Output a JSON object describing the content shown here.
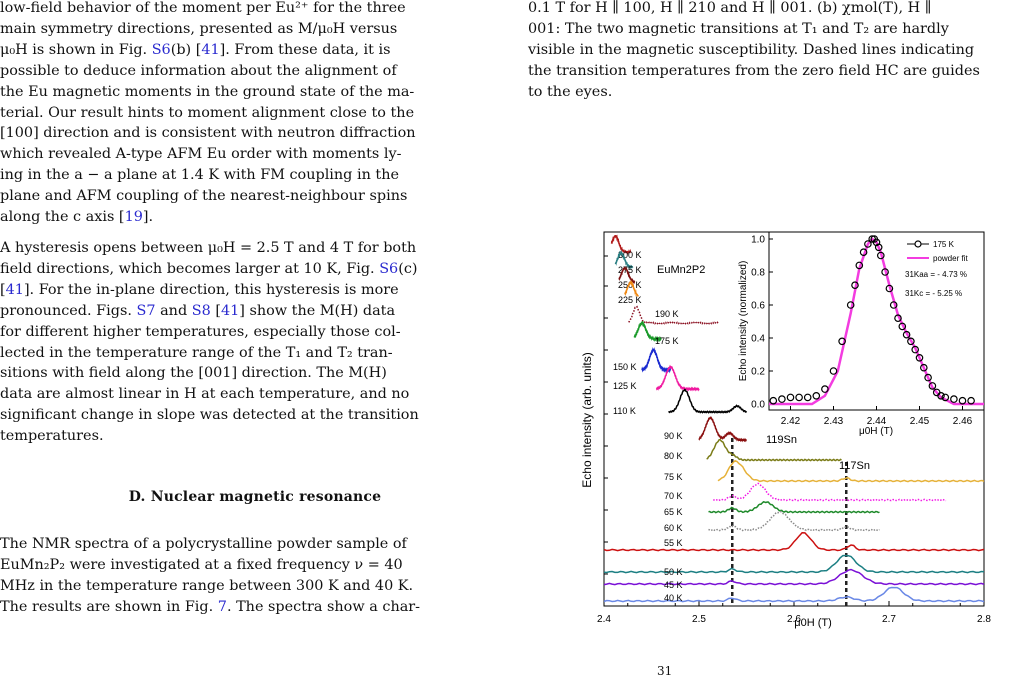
{
  "left_text": {
    "p1": [
      "low-field behavior of the moment per Eu²⁺ for the three",
      "main symmetry directions, presented as M/μ₀H versus",
      "μ₀H is shown in Fig. ",
      "S6",
      "(b) [",
      "41",
      "]. From these data, it is",
      "possible to deduce information about the alignment of",
      "the Eu magnetic moments in the ground state of the ma-",
      "terial. Our result hints to moment alignment close to the",
      "[100] direction and is consistent with neutron diffraction",
      "which revealed A-type AFM Eu order with moments ly-",
      "ing in the a − a plane at 1.4 K with FM coupling in the",
      "plane and AFM coupling of the nearest-neighbour spins",
      "along the c axis [",
      "19",
      "]."
    ],
    "p2": [
      "A hysteresis opens between μ₀H = 2.5 T and 4 T for both",
      "field directions, which becomes larger at 10 K, Fig. ",
      "S6",
      "(c)",
      "[",
      "41",
      "]. For the in-plane direction, this hysteresis is more",
      "pronounced. Figs. ",
      "S7",
      " and ",
      "S8",
      " [",
      "41",
      "] show the M(H) data",
      "for different higher temperatures, especially those col-",
      "lected in the temperature range of the T₁ and T₂ tran-",
      "sitions with field along the [001] direction. The M(H)",
      "data are almost linear in H at each temperature, and no",
      "significant change in slope was detected at the transition",
      "temperatures."
    ],
    "heading": "D.   Nuclear magnetic resonance",
    "p3": [
      "The NMR spectra of a polycrystalline powder sample of",
      "EuMn₂P₂ were investigated at a fixed frequency ν = 40",
      "MHz in the temperature range between 300 K and 40 K.",
      "The results are shown in Fig. ",
      "7",
      ". The spectra show a char-"
    ]
  },
  "caption": [
    "0.1 T for H ∥ 100, H ∥ 210 and H ∥ 001. (b) χmol(T), H ∥",
    "001: The two magnetic transitions at T₁ and T₂ are hardly",
    "visible in the magnetic susceptibility. Dashed lines indicating",
    "the transition temperatures from the zero field HC are guides",
    "to the eyes."
  ],
  "footer_fragment": "31",
  "chart_data": [
    {
      "type": "line",
      "xlabel": "μ0H (T)",
      "ylabel": "Echo intensity (arb. units)",
      "xlim": [
        2.4,
        2.8
      ],
      "xticks": [
        "2.4",
        "2.5",
        "2.6",
        "2.7",
        "2.8"
      ],
      "sample_label": "EuMn2P2",
      "annotations": [
        {
          "text": "119Sn",
          "x": 2.535
        },
        {
          "text": "117Sn",
          "x": 2.655
        }
      ],
      "dashed_lines_x": [
        2.535,
        2.655
      ],
      "series": [
        {
          "name": "300 K",
          "color": "#b21a1a",
          "peak": 2.412
        },
        {
          "name": "275 K",
          "color": "#2a7f83",
          "peak": 2.418
        },
        {
          "name": "250 K",
          "color": "#7b1010",
          "peak": 2.422
        },
        {
          "name": "225 K",
          "color": "#f08a16",
          "peak": 2.428
        },
        {
          "name": "190 K",
          "color": "#8a0f20",
          "peak": 2.434
        },
        {
          "name": "175 K",
          "color": "#1b9a2b",
          "peak": 2.44
        },
        {
          "name": "150 K",
          "color": "#1b2bd0",
          "peak": 2.452
        },
        {
          "name": "125 K",
          "color": "#f01aa0",
          "peak": 2.47
        },
        {
          "name": "110 K",
          "color": "#000000",
          "peak": 2.485
        },
        {
          "name": "90 K",
          "color": "#8a1010",
          "peak": 2.512
        },
        {
          "name": "80 K",
          "color": "#7b7c18",
          "peak": 2.522
        },
        {
          "name": "75 K",
          "color": "#e6b23a",
          "peak": 2.54
        },
        {
          "name": "70 K",
          "color": "#f21ae6",
          "peak": 2.562
        },
        {
          "name": "65 K",
          "color": "#1f8a2b",
          "peak": 2.57
        },
        {
          "name": "60 K",
          "color": "#8a8a8a",
          "peak": 2.585
        },
        {
          "name": "55 K",
          "color": "#cc1010",
          "peak": 2.61
        },
        {
          "name": "50 K",
          "color": "#1c7f83",
          "peak": 2.655
        },
        {
          "name": "45 K",
          "color": "#7a10d6",
          "peak": 2.66
        },
        {
          "name": "40 K",
          "color": "#6a88e6",
          "peak": 2.705
        }
      ]
    },
    {
      "type": "scatter",
      "xlabel": "μ0H (T)",
      "ylabel": "Echo intensity (normalized)",
      "xlim": [
        2.415,
        2.465
      ],
      "ylim": [
        0,
        1.0
      ],
      "xticks": [
        "2.42",
        "2.43",
        "2.44",
        "2.45",
        "2.46"
      ],
      "yticks": [
        "0.0",
        "0.2",
        "0.4",
        "0.6",
        "0.8",
        "1.0"
      ],
      "legend": [
        {
          "name": "175 K",
          "color": "#000000"
        },
        {
          "name": "powder fit",
          "color": "#f33ce0"
        }
      ],
      "shift_labels": [
        "31Kaa = - 4.73 %",
        "31Kc = - 5.25 %"
      ],
      "series": [
        {
          "name": "175 K",
          "x": [
            2.416,
            2.418,
            2.42,
            2.422,
            2.424,
            2.426,
            2.428,
            2.43,
            2.432,
            2.434,
            2.435,
            2.436,
            2.437,
            2.438,
            2.439,
            2.4395,
            2.44,
            2.4405,
            2.441,
            2.442,
            2.443,
            2.444,
            2.445,
            2.446,
            2.447,
            2.448,
            2.449,
            2.45,
            2.451,
            2.452,
            2.453,
            2.454,
            2.455,
            2.456,
            2.458,
            2.46,
            2.462
          ],
          "y": [
            0.02,
            0.03,
            0.04,
            0.04,
            0.04,
            0.05,
            0.09,
            0.2,
            0.38,
            0.6,
            0.72,
            0.84,
            0.92,
            0.97,
            1.0,
            1.0,
            0.98,
            0.95,
            0.9,
            0.8,
            0.7,
            0.6,
            0.52,
            0.47,
            0.42,
            0.38,
            0.33,
            0.28,
            0.22,
            0.16,
            0.11,
            0.07,
            0.05,
            0.04,
            0.03,
            0.02,
            0.02
          ]
        },
        {
          "name": "powder fit",
          "x": [
            2.415,
            2.425,
            2.428,
            2.431,
            2.434,
            2.436,
            2.438,
            2.439,
            2.44,
            2.441,
            2.443,
            2.445,
            2.447,
            2.449,
            2.451,
            2.453,
            2.455,
            2.458,
            2.465
          ],
          "y": [
            0.0,
            0.0,
            0.05,
            0.2,
            0.55,
            0.82,
            0.97,
            1.0,
            0.98,
            0.92,
            0.72,
            0.54,
            0.43,
            0.34,
            0.22,
            0.1,
            0.04,
            0.0,
            0.0
          ]
        }
      ]
    }
  ]
}
